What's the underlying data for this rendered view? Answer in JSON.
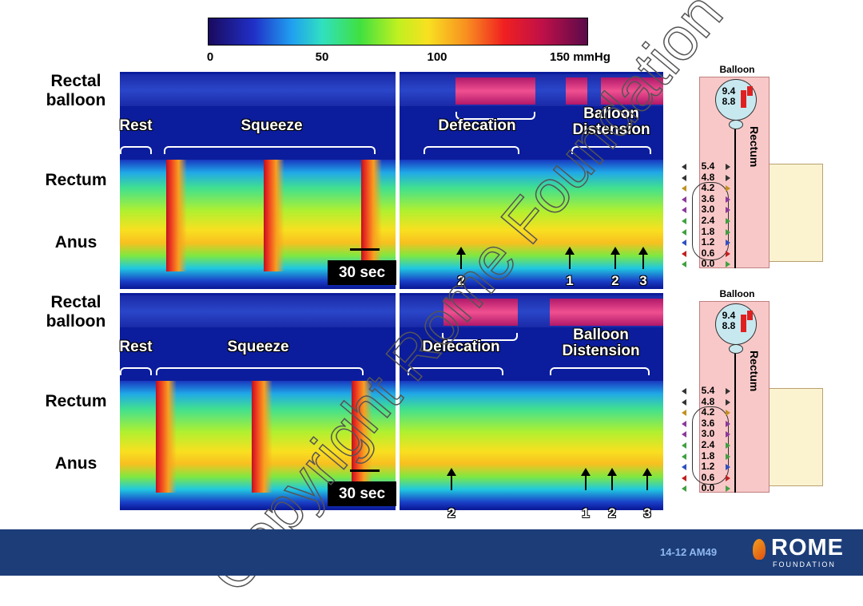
{
  "colorbar": {
    "ticks": [
      "0",
      "50",
      "100",
      "150 mmHg"
    ]
  },
  "panels": [
    {
      "labels": {
        "balloon": "Rectal balloon",
        "rectum": "Rectum",
        "anus": "Anus"
      },
      "phases": [
        "Rest",
        "Squeeze",
        "Defecation",
        "Balloon Distension"
      ],
      "scale_bar": "30 sec",
      "arrows": [
        "2",
        "1",
        "2",
        "3"
      ]
    },
    {
      "labels": {
        "balloon": "Rectal balloon",
        "rectum": "Rectum",
        "anus": "Anus"
      },
      "phases": [
        "Rest",
        "Squeeze",
        "Defecation",
        "Balloon Distension"
      ],
      "scale_bar": "30 sec",
      "arrows": [
        "2",
        "1",
        "2",
        "3"
      ]
    }
  ],
  "diagrams": [
    {
      "title": "Balloon",
      "volumes": [
        "9.4",
        "8.8"
      ],
      "organ": "Rectum",
      "sensors": [
        "5.4",
        "4.8",
        "4.2",
        "3.6",
        "3.0",
        "2.4",
        "1.8",
        "1.2",
        "0.6",
        "0.0"
      ]
    },
    {
      "title": "Balloon",
      "volumes": [
        "9.4",
        "8.8"
      ],
      "organ": "Rectum",
      "sensors": [
        "5.4",
        "4.8",
        "4.2",
        "3.6",
        "3.0",
        "2.4",
        "1.8",
        "1.2",
        "0.6",
        "0.0"
      ]
    }
  ],
  "watermark": "Copyright Rome Foundation",
  "footer": {
    "code": "14-12 AM49",
    "logo": "ROME",
    "logo_sub": "FOUNDATION"
  }
}
